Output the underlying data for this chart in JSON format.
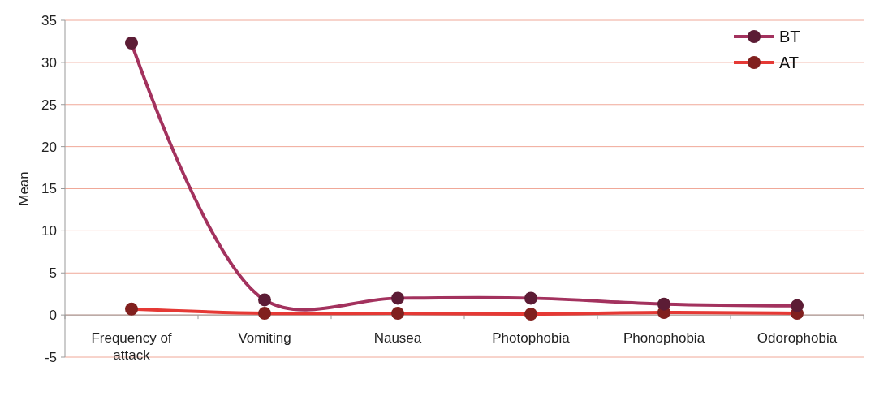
{
  "chart_data": {
    "type": "line",
    "ylabel": "Mean",
    "categories": [
      "Frequency of attack",
      "Vomiting",
      "Nausea",
      "Photophobia",
      "Phonophobia",
      "Odorophobia"
    ],
    "series": [
      {
        "name": "BT",
        "color": "#a3325e",
        "values": [
          32.3,
          1.8,
          2.0,
          2.0,
          1.3,
          1.1
        ]
      },
      {
        "name": "AT",
        "color": "#e53935",
        "values": [
          0.7,
          0.2,
          0.2,
          0.1,
          0.3,
          0.2
        ]
      }
    ],
    "ylim": [
      -5,
      35
    ],
    "yticks": [
      -5,
      0,
      5,
      10,
      15,
      20,
      25,
      30,
      35
    ],
    "grid": "y",
    "legend": "top right",
    "marker": "circle"
  }
}
